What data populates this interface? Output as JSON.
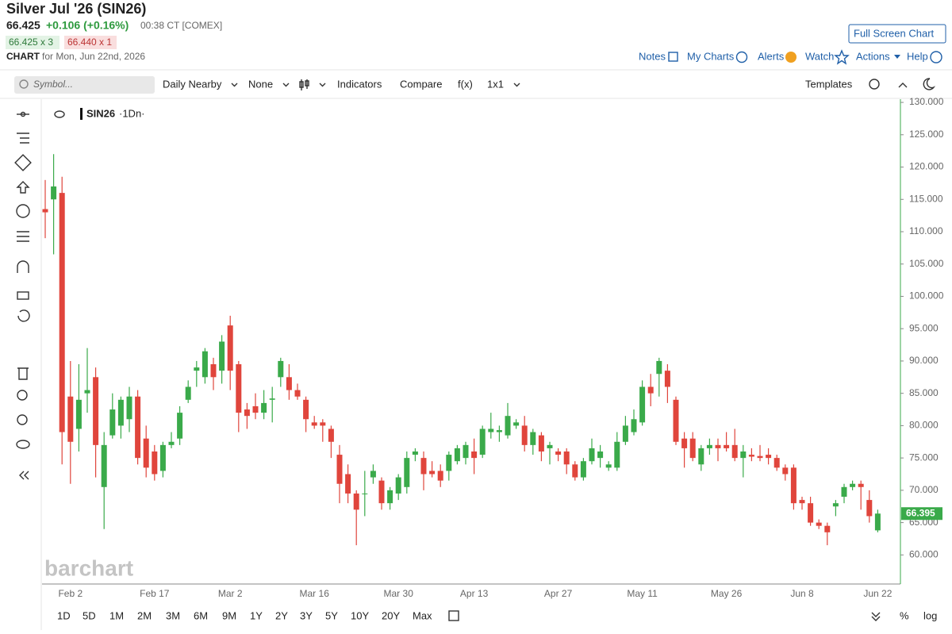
{
  "header": {
    "title": "Silver Jul '26 (SIN26)",
    "price": "66.425",
    "change": "+0.106 (+0.16%)",
    "time": "00:38 CT [COMEX]",
    "bid": "66.425 x 3",
    "ask": "66.440 x 1",
    "chart_label": "CHART",
    "chart_date": "for Mon, Jun 22nd, 2026",
    "full_screen": "Full Screen Chart"
  },
  "nav": [
    "Notes",
    "My Charts",
    "Alerts",
    "Watch",
    "Actions",
    "Help"
  ],
  "toolbar": {
    "symbol_placeholder": "Symbol...",
    "items": [
      "Daily Nearby",
      "None",
      "Indicators",
      "Compare",
      "f(x)",
      "1x1"
    ],
    "templates": "Templates"
  },
  "legend": {
    "symbol": "SIN26",
    "interval": "·1Dn·"
  },
  "watermark": "barchart",
  "ranges": [
    "1D",
    "5D",
    "1M",
    "2M",
    "3M",
    "6M",
    "9M",
    "1Y",
    "2Y",
    "3Y",
    "5Y",
    "10Y",
    "20Y",
    "Max"
  ],
  "bottom_right": [
    "%",
    "log"
  ],
  "chart_data": {
    "type": "candlestick",
    "categories": [
      null,
      null,
      null,
      "Feb 2",
      null,
      null,
      null,
      null,
      null,
      null,
      null,
      null,
      null,
      "Feb 17",
      null,
      null,
      null,
      null,
      null,
      null,
      null,
      null,
      "Mar 2",
      null,
      null,
      null,
      null,
      null,
      null,
      null,
      null,
      null,
      "Mar 16",
      null,
      null,
      null,
      null,
      null,
      null,
      null,
      null,
      null,
      "Mar 30",
      null,
      null,
      null,
      null,
      null,
      null,
      null,
      null,
      "Apr 13",
      null,
      null,
      null,
      null,
      null,
      null,
      null,
      null,
      null,
      "Apr 27",
      null,
      null,
      null,
      null,
      null,
      null,
      null,
      null,
      null,
      "May 11",
      null,
      null,
      null,
      null,
      null,
      null,
      null,
      null,
      null,
      "May 26",
      null,
      null,
      null,
      null,
      null,
      null,
      null,
      null,
      "Jun 8",
      null,
      null,
      null,
      null,
      null,
      null,
      null,
      null,
      "Jun 22"
    ],
    "open": [
      113.5,
      115,
      116,
      84.5,
      79.5,
      85,
      87.5,
      70.5,
      78.5,
      80,
      81,
      84.5,
      78,
      76,
      73,
      77,
      78,
      84,
      88.5,
      87.5,
      89.5,
      88.5,
      95.5,
      89.5,
      82.5,
      83,
      82,
      84,
      87.5,
      87.5,
      85.5,
      84,
      80.5,
      80.5,
      79.5,
      75.5,
      72.5,
      69.5,
      69.5,
      72,
      71.5,
      68,
      69.5,
      70.5,
      75.5,
      75,
      73,
      73,
      73,
      74.5,
      75,
      76,
      75.5,
      79,
      79,
      78.5,
      80,
      80,
      77,
      78.5,
      76.5,
      76,
      76,
      74,
      72,
      74.5,
      75,
      73.5,
      73.5,
      77.5,
      79,
      80.5,
      86,
      88,
      88.5,
      84,
      78,
      78,
      74,
      76.5,
      77,
      77,
      77,
      75,
      75.5,
      75.3,
      75.5,
      75,
      73.5,
      73.5,
      68.5,
      68,
      65,
      64.5,
      67.5,
      69,
      70.5,
      71,
      68.5,
      63.8
    ],
    "high": [
      118,
      122,
      118.5,
      90,
      89.5,
      92,
      89,
      79,
      85,
      84.5,
      86,
      85.5,
      80,
      77,
      77.5,
      79,
      83,
      87,
      90,
      92,
      90.5,
      94,
      97,
      90,
      83.5,
      85,
      85.5,
      86,
      90.5,
      89.5,
      86.5,
      84.5,
      81.5,
      81,
      80,
      77,
      74,
      70,
      73,
      74,
      72,
      70.5,
      72.5,
      76,
      76.5,
      76,
      74.5,
      74,
      76,
      77,
      77.5,
      78,
      80,
      82,
      80,
      83.5,
      81,
      81.5,
      79.5,
      79,
      77.5,
      76.5,
      76.5,
      74.5,
      75,
      78,
      77,
      74.5,
      79,
      81.5,
      82.5,
      87,
      88,
      90.5,
      89.5,
      84.5,
      79,
      79,
      77,
      78,
      78,
      79,
      79.5,
      77,
      76.5,
      77,
      76.5,
      75.5,
      74,
      74,
      69,
      69,
      65.5,
      65,
      68.5,
      71,
      71.5,
      71.5,
      70,
      67
    ],
    "low": [
      109,
      106.5,
      74,
      71,
      76,
      82,
      72,
      64,
      78,
      78,
      79,
      74,
      72,
      71.5,
      72,
      76.5,
      77,
      83.5,
      86,
      86.5,
      85.5,
      86.5,
      85.5,
      79,
      79.5,
      81,
      81,
      80.5,
      86,
      84,
      84,
      79,
      79.5,
      77.5,
      75,
      68,
      68,
      61.5,
      66,
      71,
      67,
      67,
      68.5,
      69.5,
      74.5,
      70,
      72,
      70.5,
      71.5,
      74,
      74,
      72.5,
      75,
      78,
      77.5,
      78,
      79.5,
      76,
      75.5,
      74.5,
      74,
      74.5,
      72.5,
      71.5,
      71.5,
      74,
      73.5,
      73,
      73,
      77,
      78.5,
      80,
      83,
      84.5,
      83.5,
      77,
      73.5,
      74.5,
      73,
      75.5,
      74.5,
      76,
      74.5,
      72,
      74.5,
      74.5,
      74,
      73,
      71.5,
      67,
      67,
      64.5,
      64,
      61.5,
      66,
      68,
      70,
      67,
      65,
      63.5
    ],
    "close": [
      113,
      117,
      79,
      77.5,
      84,
      85.5,
      77,
      77,
      82.5,
      84,
      84.5,
      75,
      73.5,
      72.5,
      77,
      77.5,
      82,
      86,
      89,
      91.5,
      87.5,
      93,
      88.5,
      82,
      81.5,
      82,
      83.5,
      84.2,
      90,
      85.5,
      84.5,
      81,
      80,
      80,
      77.5,
      71,
      69.5,
      67,
      69.5,
      73,
      68,
      70,
      72,
      75,
      76,
      72.5,
      72.5,
      71.5,
      75.5,
      76.5,
      77,
      75,
      79.5,
      79.5,
      79.3,
      81.5,
      80.5,
      77,
      79,
      76,
      77,
      75.5,
      74,
      72,
      74.5,
      76.5,
      76,
      74,
      77.5,
      80,
      81,
      86,
      85,
      90,
      86,
      77.5,
      76.5,
      75,
      76.5,
      77,
      76.5,
      76.5,
      75,
      76,
      75.2,
      75,
      75,
      73.5,
      72.5,
      68,
      68,
      65,
      64.5,
      63.5,
      68,
      70.5,
      71,
      70.5,
      66,
      66.395
    ],
    "up_color": "#3aaa4a",
    "down_color": "#e0453c",
    "last_value": 66.395,
    "ylim": [
      55.5,
      130.5
    ],
    "yticks": [
      {
        "value": 60,
        "label": "60.000"
      },
      {
        "value": 65,
        "label": "65.000"
      },
      {
        "value": 70,
        "label": "70.000"
      },
      {
        "value": 75,
        "label": "75.000"
      },
      {
        "value": 80,
        "label": "80.000"
      },
      {
        "value": 85,
        "label": "85.000"
      },
      {
        "value": 90,
        "label": "90.000"
      },
      {
        "value": 95,
        "label": "95.000"
      },
      {
        "value": 100,
        "label": "100.000"
      },
      {
        "value": 105,
        "label": "105.000"
      },
      {
        "value": 110,
        "label": "110.000"
      },
      {
        "value": 115,
        "label": "115.000"
      },
      {
        "value": 120,
        "label": "120.000"
      },
      {
        "value": 125,
        "label": "125.000"
      },
      {
        "value": 130,
        "label": "130.000"
      }
    ],
    "grid": false
  }
}
